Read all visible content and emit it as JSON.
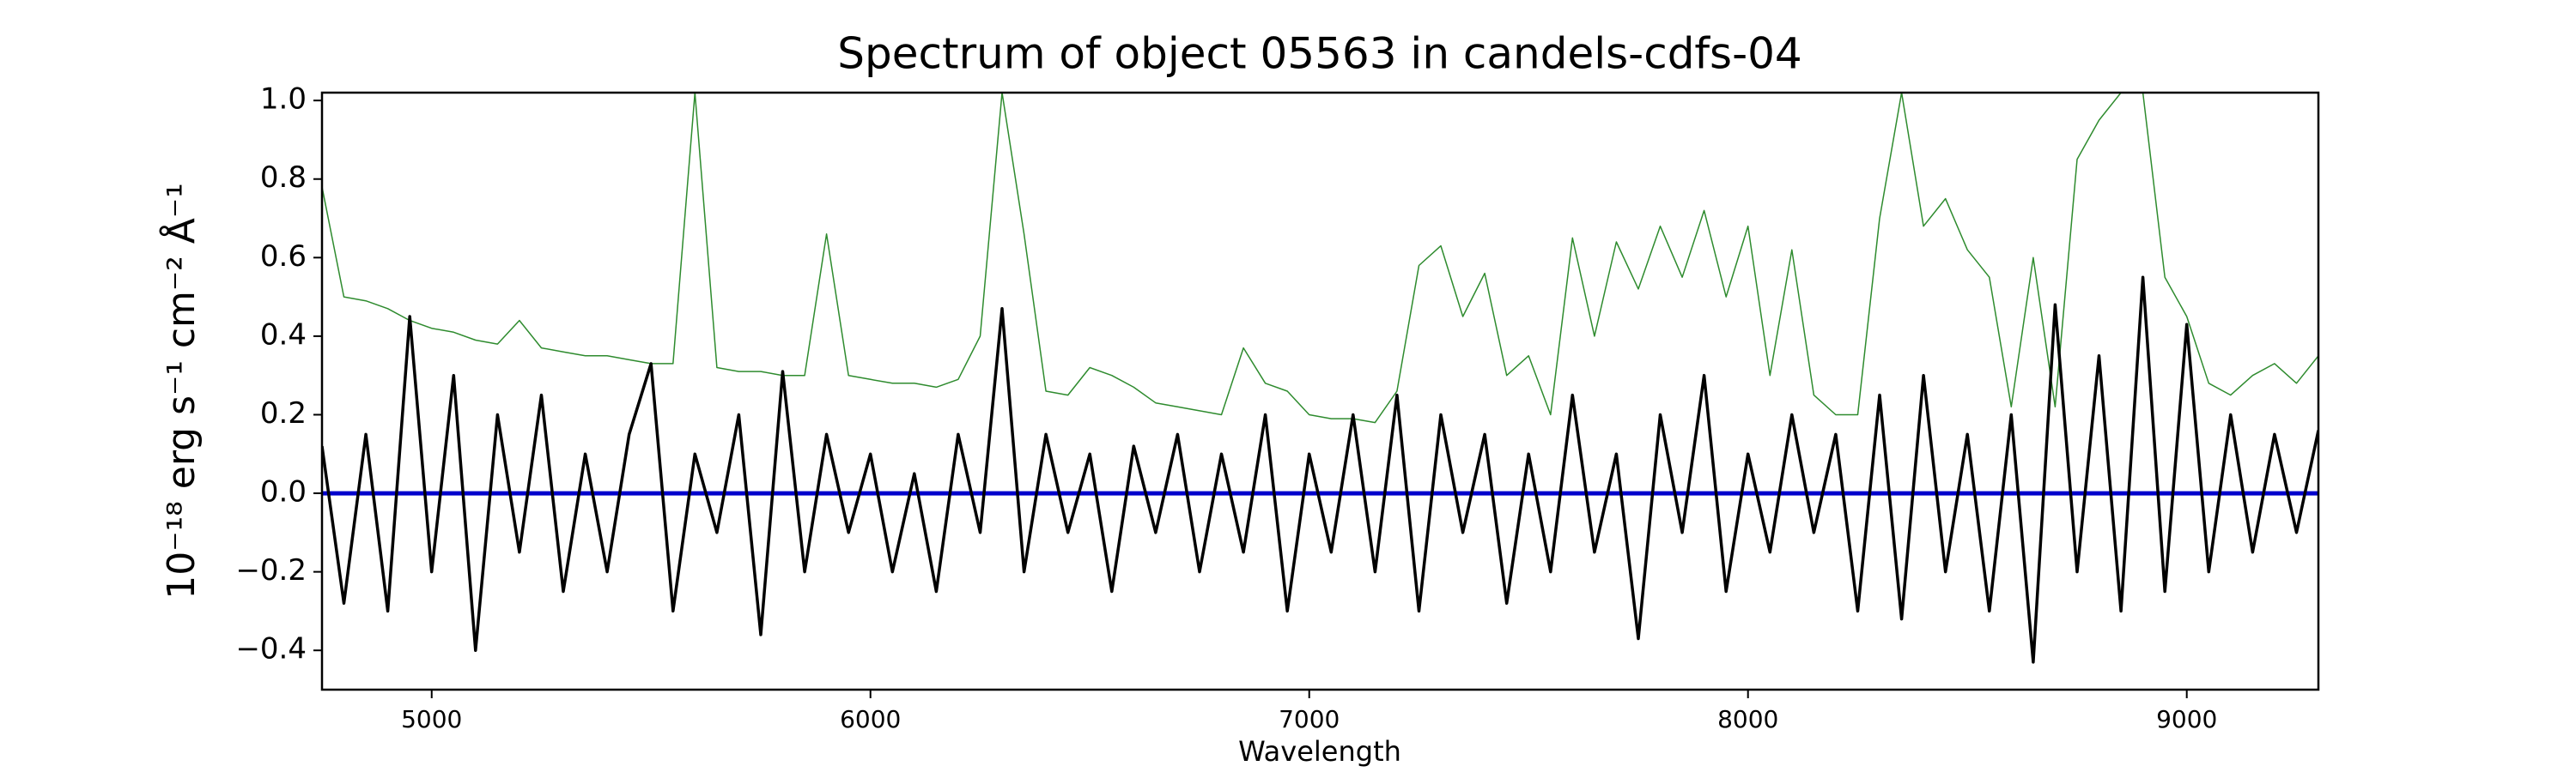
{
  "chart_data": {
    "type": "line",
    "title": "Spectrum of object 05563 in candels-cdfs-04",
    "xlabel": "Wavelength",
    "ylabel": "10⁻¹⁸ erg s⁻¹ cm⁻² Å⁻¹",
    "xlim": [
      4750,
      9300
    ],
    "ylim": [
      -0.5,
      1.02
    ],
    "xticks": [
      5000,
      6000,
      7000,
      8000,
      9000
    ],
    "yticks": [
      {
        "value": -0.4,
        "label": "−0.4"
      },
      {
        "value": -0.2,
        "label": "−0.2"
      },
      {
        "value": 0,
        "label": "0.0"
      },
      0.2,
      0.4,
      0.6,
      0.8,
      {
        "value": 1,
        "label": "1.0"
      }
    ],
    "x": [
      4750,
      4800,
      4850,
      4900,
      4950,
      5000,
      5050,
      5100,
      5150,
      5200,
      5250,
      5300,
      5350,
      5400,
      5450,
      5500,
      5550,
      5600,
      5650,
      5700,
      5750,
      5800,
      5850,
      5900,
      5950,
      6000,
      6050,
      6100,
      6150,
      6200,
      6250,
      6300,
      6350,
      6400,
      6450,
      6500,
      6550,
      6600,
      6650,
      6700,
      6750,
      6800,
      6850,
      6900,
      6950,
      7000,
      7050,
      7100,
      7150,
      7200,
      7250,
      7300,
      7350,
      7400,
      7450,
      7500,
      7550,
      7600,
      7650,
      7700,
      7750,
      7800,
      7850,
      7900,
      7950,
      8000,
      8050,
      8100,
      8150,
      8200,
      8250,
      8300,
      8350,
      8400,
      8450,
      8500,
      8550,
      8600,
      8650,
      8700,
      8750,
      8800,
      8850,
      8900,
      8950,
      9000,
      9050,
      9100,
      9150,
      9200,
      9250,
      9300
    ],
    "series": [
      {
        "color": "#2e8b2e",
        "width": 1.5,
        "values": [
          0.78,
          0.5,
          0.49,
          0.47,
          0.44,
          0.42,
          0.41,
          0.39,
          0.38,
          0.44,
          0.37,
          0.36,
          0.35,
          0.35,
          0.34,
          0.33,
          0.33,
          1.02,
          0.32,
          0.31,
          0.31,
          0.3,
          0.3,
          0.66,
          0.3,
          0.29,
          0.28,
          0.28,
          0.27,
          0.29,
          0.4,
          1.02,
          0.66,
          0.26,
          0.25,
          0.32,
          0.3,
          0.27,
          0.23,
          0.22,
          0.21,
          0.2,
          0.37,
          0.28,
          0.26,
          0.2,
          0.19,
          0.19,
          0.18,
          0.26,
          0.58,
          0.63,
          0.45,
          0.56,
          0.3,
          0.35,
          0.2,
          0.65,
          0.4,
          0.64,
          0.52,
          0.68,
          0.55,
          0.72,
          0.5,
          0.68,
          0.3,
          0.62,
          0.25,
          0.2,
          0.2,
          0.7,
          1.02,
          0.68,
          0.75,
          0.62,
          0.55,
          0.22,
          0.6,
          0.22,
          0.85,
          0.95,
          1.02,
          1.02,
          0.55,
          0.45,
          0.28,
          0.25,
          0.3,
          0.33,
          0.28,
          0.35
        ]
      },
      {
        "color": "#0000cc",
        "width": 5,
        "values": [
          0,
          0,
          0,
          0,
          0,
          0,
          0,
          0,
          0,
          0,
          0,
          0,
          0,
          0,
          0,
          0,
          0,
          0,
          0,
          0,
          0,
          0,
          0,
          0,
          0,
          0,
          0,
          0,
          0,
          0,
          0,
          0,
          0,
          0,
          0,
          0,
          0,
          0,
          0,
          0,
          0,
          0,
          0,
          0,
          0,
          0,
          0,
          0,
          0,
          0,
          0,
          0,
          0,
          0,
          0,
          0,
          0,
          0,
          0,
          0,
          0,
          0,
          0,
          0,
          0,
          0,
          0,
          0,
          0,
          0,
          0,
          0,
          0,
          0,
          0,
          0,
          0,
          0,
          0,
          0,
          0,
          0,
          0,
          0,
          0,
          0,
          0,
          0,
          0,
          0,
          0,
          0
        ]
      },
      {
        "color": "#000000",
        "width": 3.5,
        "values": [
          0.12,
          -0.28,
          0.15,
          -0.3,
          0.45,
          -0.2,
          0.3,
          -0.4,
          0.2,
          -0.15,
          0.25,
          -0.25,
          0.1,
          -0.2,
          0.15,
          0.33,
          -0.3,
          0.1,
          -0.1,
          0.2,
          -0.36,
          0.31,
          -0.2,
          0.15,
          -0.1,
          0.1,
          -0.2,
          0.05,
          -0.25,
          0.15,
          -0.1,
          0.47,
          -0.2,
          0.15,
          -0.1,
          0.1,
          -0.25,
          0.12,
          -0.1,
          0.15,
          -0.2,
          0.1,
          -0.15,
          0.2,
          -0.3,
          0.1,
          -0.15,
          0.2,
          -0.2,
          0.25,
          -0.3,
          0.2,
          -0.1,
          0.15,
          -0.28,
          0.1,
          -0.2,
          0.25,
          -0.15,
          0.1,
          -0.37,
          0.2,
          -0.1,
          0.3,
          -0.25,
          0.1,
          -0.15,
          0.2,
          -0.1,
          0.15,
          -0.3,
          0.25,
          -0.32,
          0.3,
          -0.2,
          0.15,
          -0.3,
          0.2,
          -0.43,
          0.48,
          -0.2,
          0.35,
          -0.3,
          0.55,
          -0.25,
          0.43,
          -0.2,
          0.2,
          -0.15,
          0.15,
          -0.1,
          0.16
        ]
      }
    ]
  }
}
